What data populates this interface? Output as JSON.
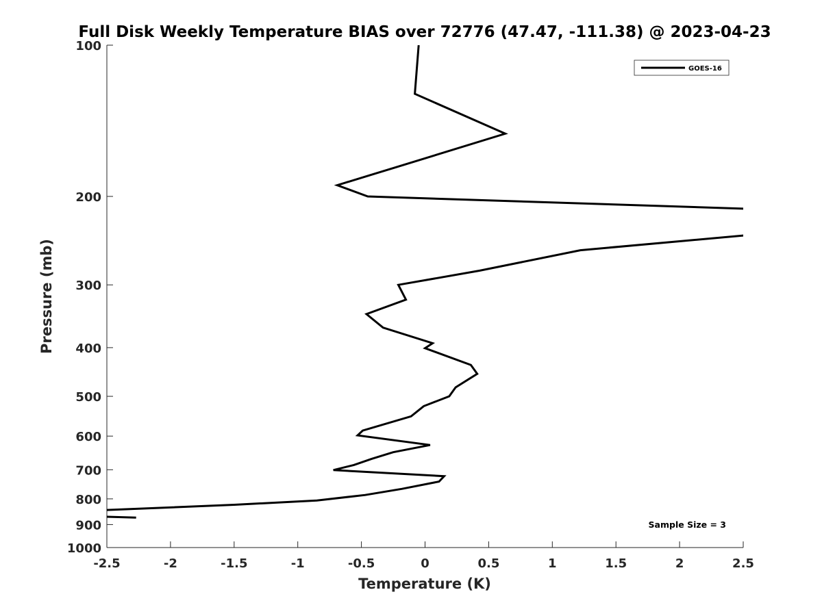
{
  "chart_data": {
    "type": "line",
    "title": "Full Disk Weekly Temperature BIAS over 72776 (47.47, -111.38) @ 2023-04-23",
    "xlabel": "Temperature (K)",
    "ylabel": "Pressure (mb)",
    "xlim": [
      -2.5,
      2.5
    ],
    "ylim": [
      100,
      1000
    ],
    "y_scale": "log",
    "y_reversed": true,
    "x_ticks": [
      -2.5,
      -2,
      -1.5,
      -1,
      -0.5,
      0,
      0.5,
      1,
      1.5,
      2,
      2.5
    ],
    "x_tick_labels": [
      "-2.5",
      "-2",
      "-1.5",
      "-1",
      "-0.5",
      "0",
      "0.5",
      "1",
      "1.5",
      "2",
      "2.5"
    ],
    "y_ticks": [
      100,
      200,
      300,
      400,
      500,
      600,
      700,
      800,
      900,
      1000
    ],
    "y_tick_labels": [
      "100",
      "200",
      "300",
      "400",
      "500",
      "600",
      "700",
      "800",
      "900",
      "1000"
    ],
    "grid": false,
    "legend_position": "top-right",
    "series": [
      {
        "name": "GOES-16",
        "color": "#000000",
        "points": [
          [
            -0.05,
            100
          ],
          [
            -0.08,
            125
          ],
          [
            0.63,
            150
          ],
          [
            -0.23,
            175
          ],
          [
            -0.69,
            190
          ],
          [
            -0.45,
            200
          ],
          [
            2.6,
            212
          ],
          [
            2.6,
            238
          ],
          [
            1.22,
            256
          ],
          [
            0.43,
            281
          ],
          [
            -0.21,
            300
          ],
          [
            -0.15,
            321
          ],
          [
            -0.46,
            343
          ],
          [
            -0.33,
            365
          ],
          [
            0.06,
            392
          ],
          [
            0.0,
            401
          ],
          [
            0.36,
            433
          ],
          [
            0.41,
            451
          ],
          [
            0.24,
            480
          ],
          [
            0.19,
            500
          ],
          [
            -0.01,
            523
          ],
          [
            -0.11,
            548
          ],
          [
            -0.49,
            585
          ],
          [
            -0.53,
            598
          ],
          [
            0.04,
            625
          ],
          [
            -0.25,
            646
          ],
          [
            -0.42,
            666
          ],
          [
            -0.56,
            685
          ],
          [
            -0.72,
            701
          ],
          [
            0.15,
            721
          ],
          [
            0.11,
            739
          ],
          [
            -0.18,
            764
          ],
          [
            -0.47,
            786
          ],
          [
            -0.85,
            806
          ],
          [
            -1.5,
            822
          ],
          [
            -2.6,
            844
          ]
        ]
      },
      {
        "name": "",
        "color": "#000000",
        "points": [
          [
            -2.6,
            867
          ],
          [
            -2.27,
            872
          ]
        ]
      }
    ],
    "annotations": [
      {
        "text": "Sample Size = 3",
        "position": "bottom-right"
      }
    ]
  }
}
